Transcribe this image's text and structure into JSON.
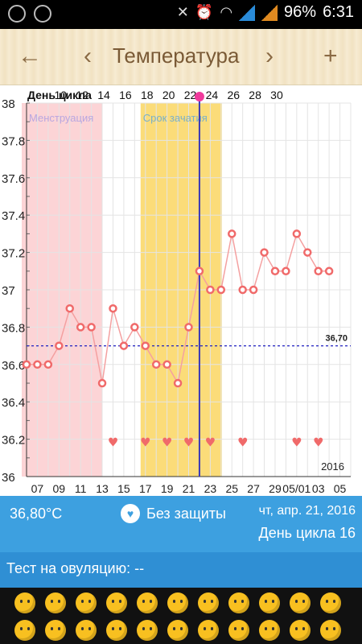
{
  "statusbar": {
    "battery": "96%",
    "time": "6:31"
  },
  "toolbar": {
    "title": "Температура",
    "back": "←",
    "prev": "‹",
    "next": "›",
    "add": "+"
  },
  "chart_data": {
    "type": "line",
    "header_label": "День цикла",
    "cycle_days": [
      "10",
      "12",
      "14",
      "16",
      "18",
      "20",
      "22",
      "24",
      "26",
      "28",
      "30"
    ],
    "dates": [
      "07",
      "09",
      "11",
      "13",
      "15",
      "17",
      "19",
      "21",
      "23",
      "25",
      "27",
      "29",
      "05/01",
      "03",
      "05"
    ],
    "year": "2016",
    "yticks": [
      "38",
      "37.8",
      "37.6",
      "37.4",
      "37.2",
      "37",
      "36.8",
      "36.6",
      "36.4",
      "36.2",
      "36"
    ],
    "ylim": [
      36,
      38
    ],
    "x_day_range": [
      6,
      36
    ],
    "values": [
      {
        "d": 6,
        "v": 36.6
      },
      {
        "d": 7,
        "v": 36.6
      },
      {
        "d": 8,
        "v": 36.6
      },
      {
        "d": 9,
        "v": 36.7
      },
      {
        "d": 10,
        "v": 36.9
      },
      {
        "d": 11,
        "v": 36.8
      },
      {
        "d": 12,
        "v": 36.8
      },
      {
        "d": 13,
        "v": 36.5
      },
      {
        "d": 14,
        "v": 36.9
      },
      {
        "d": 15,
        "v": 36.7
      },
      {
        "d": 16,
        "v": 36.8
      },
      {
        "d": 17,
        "v": 36.7
      },
      {
        "d": 18,
        "v": 36.6
      },
      {
        "d": 19,
        "v": 36.6
      },
      {
        "d": 20,
        "v": 36.5
      },
      {
        "d": 21,
        "v": 36.8
      },
      {
        "d": 22,
        "v": 37.1
      },
      {
        "d": 23,
        "v": 37.0
      },
      {
        "d": 24,
        "v": 37.0
      },
      {
        "d": 25,
        "v": 37.3
      },
      {
        "d": 26,
        "v": 37.0
      },
      {
        "d": 27,
        "v": 37.0
      },
      {
        "d": 28,
        "v": 37.2
      },
      {
        "d": 29,
        "v": 37.1
      },
      {
        "d": 30,
        "v": 37.1
      },
      {
        "d": 31,
        "v": 37.3
      },
      {
        "d": 32,
        "v": 37.2
      },
      {
        "d": 33,
        "v": 37.1
      },
      {
        "d": 34,
        "v": 37.1
      }
    ],
    "hearts": [
      14,
      17,
      19,
      21,
      23,
      26,
      31,
      33
    ],
    "menstruation": {
      "label": "Менструация",
      "from": 6,
      "to": 13
    },
    "fertile": {
      "label": "Срок зачатия",
      "from": 17,
      "to": 24
    },
    "coverline": {
      "value": 36.7,
      "label": "36,70"
    },
    "current_day": 22,
    "colors": {
      "line": "#f4a0a0",
      "point": "#f06a6a",
      "menstr": "#fcd4d6",
      "fertile": "#fbdc79",
      "coverline": "#2020c0",
      "current": "#3838b8"
    }
  },
  "info": {
    "temperature": "36,80°C",
    "protection": "Без защиты",
    "date": "чт, апр. 21, 2016",
    "cycle_day": "День цикла 16"
  },
  "ovulation_test": "Тест на овуляцию: --"
}
